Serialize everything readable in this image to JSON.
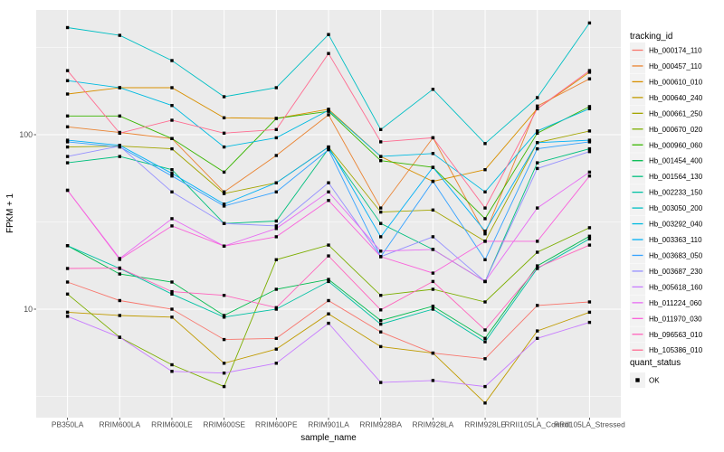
{
  "figure": {
    "xlabel": "sample_name",
    "ylabel": "FPKM + 1",
    "y_tick_labels": [
      "100",
      "10"
    ]
  },
  "legend": {
    "tracking_title": "tracking_id",
    "quant_title": "quant_status",
    "ok_label": "OK"
  },
  "colors": {
    "panel_bg": "#EBEBEB",
    "grid": "#FFFFFF",
    "point": "#000000",
    "axis_text": "#4D4D4D",
    "legend_key_bg": "#F2F2F2"
  },
  "chart_data": {
    "type": "line",
    "title": "",
    "xlabel": "sample_name",
    "ylabel": "FPKM + 1",
    "y_scale": "log10",
    "ylim": [
      2.4,
      520
    ],
    "y_major_ticks": [
      10,
      100
    ],
    "y_minor_ticks": [
      3.162,
      31.62,
      316.2
    ],
    "grid": "on",
    "legend_position": "right",
    "point_shape": "black-square (quant_status = OK)",
    "categories": [
      "PB350LA",
      "RRIM600LA",
      "RRIM600LE",
      "RRIM600SE",
      "RRIM600PE",
      "RRIM901LA",
      "RRIM928BA",
      "RRIM928LA",
      "RRIM928LE",
      "RRII105LA_Control",
      "RRII105LA_Stressed"
    ],
    "series": [
      {
        "name": "Hb_000174_110",
        "color": "#F8766D",
        "values": [
          14.3,
          11.2,
          10.0,
          6.7,
          6.8,
          11.2,
          7.4,
          5.6,
          5.2,
          10.5,
          11.0
        ]
      },
      {
        "name": "Hb_000457_110",
        "color": "#EA8331",
        "values": [
          111,
          103,
          95,
          47,
          76,
          130,
          38,
          96,
          27,
          146,
          209
        ]
      },
      {
        "name": "Hb_000610_010",
        "color": "#D89000",
        "values": [
          171,
          186,
          186,
          125,
          124,
          140,
          75,
          54,
          63,
          141,
          228
        ]
      },
      {
        "name": "Hb_000640_240",
        "color": "#C09B00",
        "values": [
          9.6,
          9.2,
          9.0,
          4.9,
          5.9,
          9.4,
          6.1,
          5.6,
          2.9,
          7.5,
          9.6
        ]
      },
      {
        "name": "Hb_000661_250",
        "color": "#A3A500",
        "values": [
          85,
          86,
          83,
          46,
          53,
          85,
          36,
          37,
          24.5,
          90,
          105
        ]
      },
      {
        "name": "Hb_000670_020",
        "color": "#7CAE00",
        "values": [
          12.2,
          6.9,
          4.8,
          3.6,
          19.2,
          23.3,
          12.0,
          13.0,
          11.0,
          21.2,
          29.3
        ]
      },
      {
        "name": "Hb_000960_060",
        "color": "#39B600",
        "values": [
          128,
          128,
          95,
          61,
          124,
          136,
          71,
          65,
          33,
          102,
          145
        ]
      },
      {
        "name": "Hb_001454_400",
        "color": "#00BB4E",
        "values": [
          23.1,
          15.9,
          14.3,
          9.2,
          13.0,
          14.8,
          8.6,
          10.4,
          6.8,
          17.7,
          26.2
        ]
      },
      {
        "name": "Hb_001564_130",
        "color": "#00BF7D",
        "values": [
          69,
          75,
          63,
          31,
          32,
          83,
          31,
          22,
          14.4,
          69,
          83
        ]
      },
      {
        "name": "Hb_002233_150",
        "color": "#00C1A3",
        "values": [
          23.1,
          17.1,
          12.2,
          9.0,
          10.0,
          14.4,
          8.2,
          10.0,
          6.5,
          17.1,
          25.3
        ]
      },
      {
        "name": "Hb_003050_200",
        "color": "#00BFC4",
        "values": [
          411,
          371,
          266,
          165,
          186,
          375,
          107,
          182,
          89,
          163,
          437
        ]
      },
      {
        "name": "Hb_003292_040",
        "color": "#00BAE0",
        "values": [
          204,
          186,
          147,
          85,
          96,
          138,
          75,
          78,
          47,
          105,
          141
        ]
      },
      {
        "name": "Hb_003363_110",
        "color": "#00B0F6",
        "values": [
          93,
          87,
          60,
          40,
          53,
          85,
          26,
          65,
          28,
          90,
          93
        ]
      },
      {
        "name": "Hb_003683_050",
        "color": "#35A2FF",
        "values": [
          91,
          85,
          58,
          39,
          47,
          82,
          20,
          54,
          19.2,
          83,
          91
        ]
      },
      {
        "name": "Hb_003687_230",
        "color": "#9590FF",
        "values": [
          75,
          86,
          47,
          31,
          30,
          53,
          20,
          26,
          14.4,
          64,
          80
        ]
      },
      {
        "name": "Hb_005618_160",
        "color": "#C77CFF",
        "values": [
          9.1,
          6.9,
          4.4,
          4.3,
          4.9,
          8.3,
          3.8,
          3.9,
          3.6,
          6.8,
          8.4
        ]
      },
      {
        "name": "Hb_011224_060",
        "color": "#E76BF3",
        "values": [
          48,
          19.5,
          33,
          23,
          29,
          47,
          21.5,
          22,
          14.4,
          38,
          61
        ]
      },
      {
        "name": "Hb_011970_030",
        "color": "#FA62DB",
        "values": [
          48,
          19.3,
          30,
          23,
          26,
          42,
          20,
          16.1,
          24.5,
          24.5,
          58
        ]
      },
      {
        "name": "Hb_096563_010",
        "color": "#FF62BC",
        "values": [
          17.1,
          17.2,
          12.6,
          12.0,
          10.2,
          20.2,
          9.9,
          14.4,
          7.6,
          17.3,
          23.3
        ]
      },
      {
        "name": "Hb_105386_010",
        "color": "#FF6C91",
        "values": [
          233,
          102,
          121,
          102,
          107,
          292,
          91,
          96,
          38,
          141,
          233
        ]
      }
    ]
  }
}
